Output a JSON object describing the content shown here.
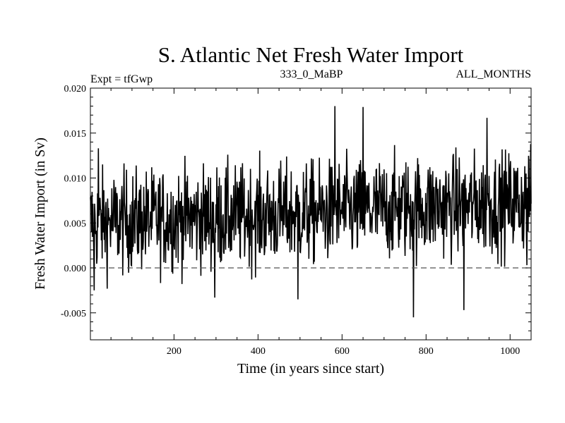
{
  "chart_data": {
    "type": "line",
    "title": "S. Atlantic Net Fresh Water Import",
    "subtitle_left": "Expt = tfGwp",
    "subtitle_center": "333_0_MaBP",
    "subtitle_right": "ALL_MONTHS",
    "xlabel": "Time (in years since start)",
    "ylabel": "Fresh Water Import (in Sv)",
    "xlim": [
      1,
      1050
    ],
    "ylim": [
      -0.008,
      0.02
    ],
    "xticks": [
      200,
      400,
      600,
      800,
      1000
    ],
    "yticks": [
      -0.005,
      0.0,
      0.005,
      0.01,
      0.015,
      0.02
    ],
    "ytick_labels": [
      "-0.005",
      "0.000",
      "0.005",
      "0.010",
      "0.015",
      "0.020"
    ],
    "reference_line": {
      "y": 0.0,
      "style": "dashed"
    },
    "series": [
      {
        "name": "Net fresh water import",
        "description": "annual-mean time series, 1050 years; noisy signal around 0.005-0.007 Sv with slow upward trend",
        "trend_mean": [
          [
            1,
            0.005
          ],
          [
            200,
            0.0055
          ],
          [
            400,
            0.0058
          ],
          [
            600,
            0.0063
          ],
          [
            800,
            0.0068
          ],
          [
            1000,
            0.0072
          ],
          [
            1050,
            0.0075
          ]
        ],
        "notable_points": [
          [
            10,
            -0.0025
          ],
          [
            20,
            0.0133
          ],
          [
            297,
            -0.0033
          ],
          [
            495,
            -0.0035
          ],
          [
            583,
            0.018
          ],
          [
            650,
            0.0179
          ],
          [
            770,
            -0.0055
          ],
          [
            890,
            -0.0047
          ],
          [
            945,
            0.0167
          ],
          [
            1040,
            0.0003
          ]
        ]
      }
    ]
  }
}
